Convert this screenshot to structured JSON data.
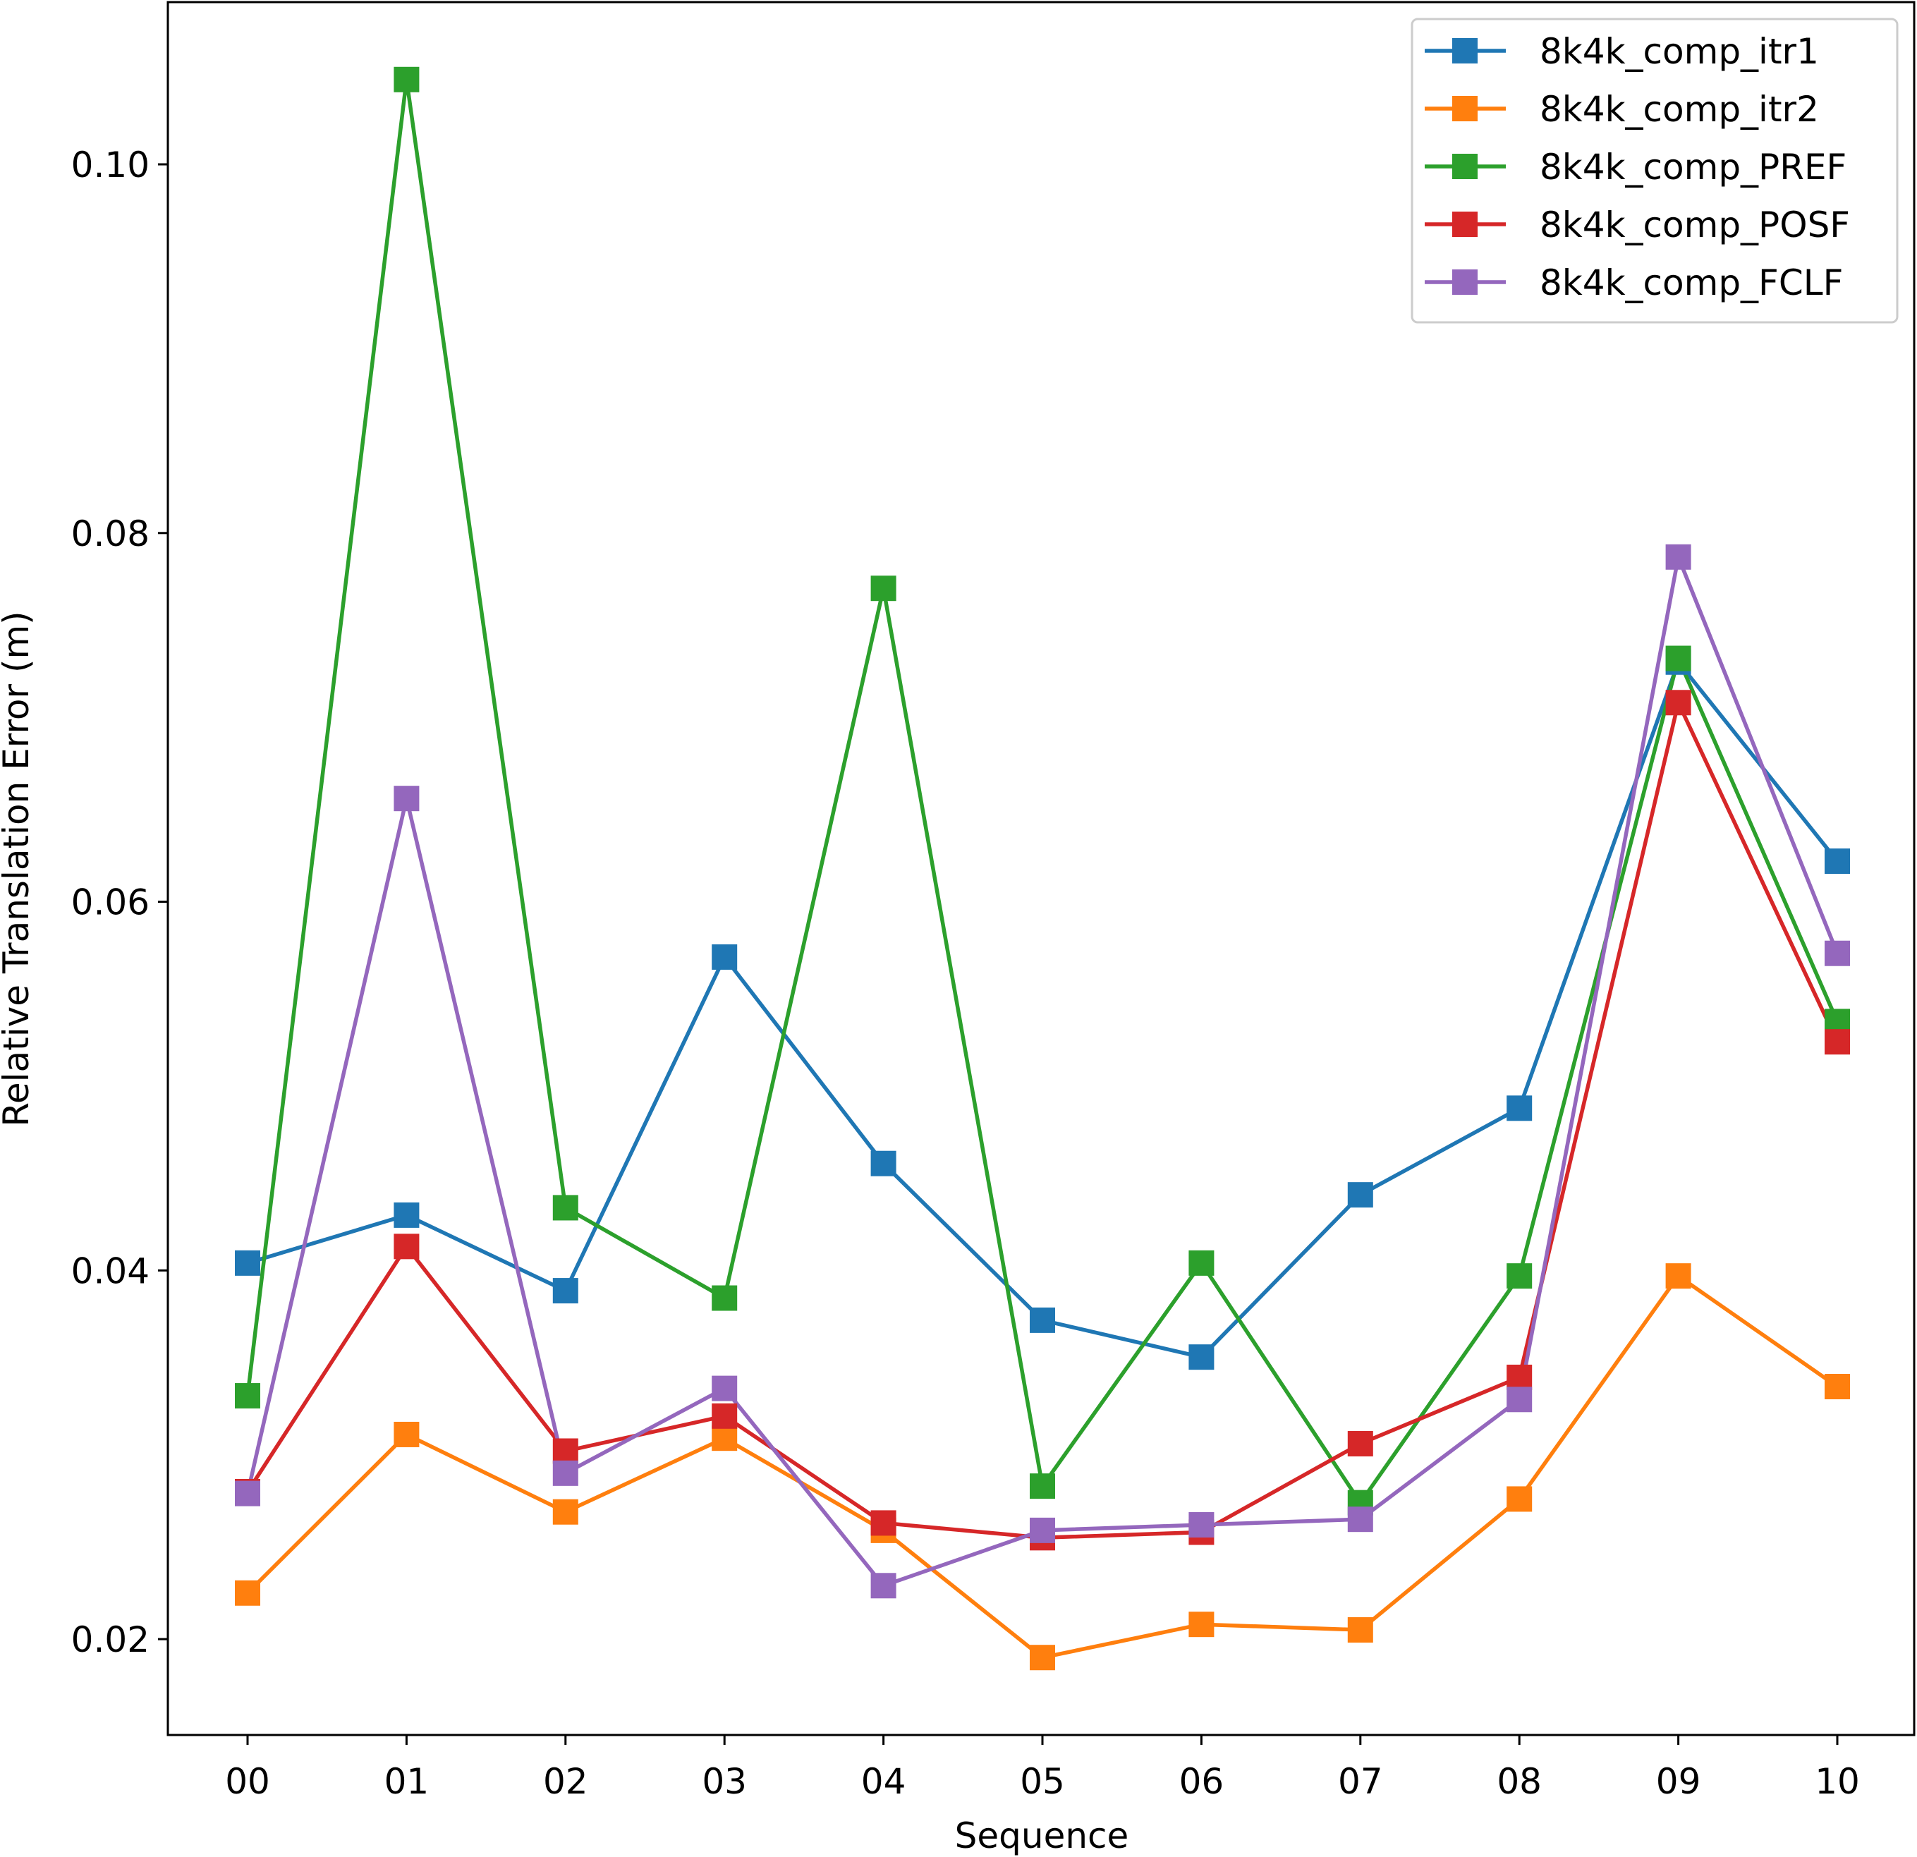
{
  "chart_data": {
    "type": "line",
    "title": "",
    "xlabel": "Sequence",
    "ylabel": "Relative Translation Error (m)",
    "categories": [
      "00",
      "01",
      "02",
      "03",
      "04",
      "05",
      "06",
      "07",
      "08",
      "09",
      "10"
    ],
    "yticks": [
      0.02,
      0.04,
      0.06,
      0.08,
      0.1
    ],
    "ytick_labels": [
      "0.02",
      "0.04",
      "0.06",
      "0.08",
      "0.10"
    ],
    "ylim": [
      0.0148,
      0.1088
    ],
    "grid": false,
    "legend_position": "top-right",
    "marker": "square",
    "series": [
      {
        "name": "8k4k_comp_itr1",
        "color": "#1f77b4",
        "values": [
          0.0404,
          0.043,
          0.0389,
          0.057,
          0.0458,
          0.0373,
          0.0353,
          0.0441,
          0.0488,
          0.073,
          0.0622
        ]
      },
      {
        "name": "8k4k_comp_itr2",
        "color": "#ff7f0e",
        "values": [
          0.0225,
          0.0311,
          0.0269,
          0.0309,
          0.0259,
          0.019,
          0.0208,
          0.0205,
          0.0276,
          0.0397,
          0.0337
        ]
      },
      {
        "name": "8k4k_comp_PREF",
        "color": "#2ca02c",
        "values": [
          0.0332,
          0.1046,
          0.0434,
          0.0385,
          0.077,
          0.0283,
          0.0404,
          0.0274,
          0.0397,
          0.0732,
          0.0535
        ]
      },
      {
        "name": "8k4k_comp_POSF",
        "color": "#d62728",
        "values": [
          0.028,
          0.0413,
          0.0302,
          0.0321,
          0.0263,
          0.0255,
          0.0258,
          0.0306,
          0.0342,
          0.0708,
          0.0524
        ]
      },
      {
        "name": "8k4k_comp_FCLF",
        "color": "#9467bd",
        "values": [
          0.0279,
          0.0656,
          0.029,
          0.0336,
          0.0229,
          0.0259,
          0.0262,
          0.0265,
          0.033,
          0.0787,
          0.0572
        ]
      }
    ]
  }
}
